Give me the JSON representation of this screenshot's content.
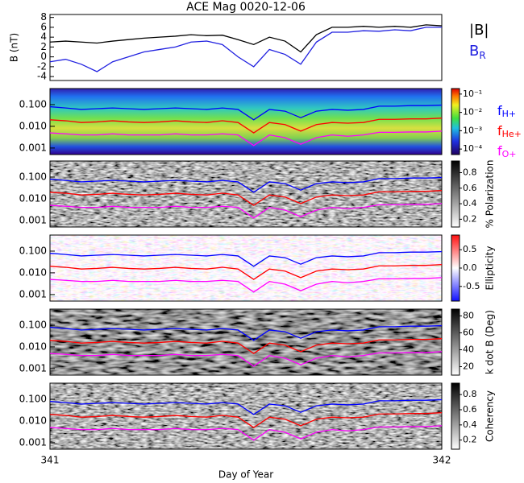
{
  "chart_data": {
    "type": "line",
    "title": "ACE Mag 0020-12-06",
    "x_label": "Day of Year",
    "x": [
      341,
      341.04,
      341.08,
      341.12,
      341.16,
      341.2,
      341.24,
      341.28,
      341.32,
      341.36,
      341.4,
      341.44,
      341.48,
      341.52,
      341.56,
      341.6,
      341.64,
      341.68,
      341.72,
      341.76,
      341.8,
      341.84,
      341.88,
      341.92,
      341.96,
      342
    ],
    "xlim": [
      341,
      342
    ],
    "xticks": [
      341,
      342
    ],
    "field_panel": {
      "y_label": "B (nT)",
      "ylim": [
        -4.8,
        8.6
      ],
      "yticks": [
        -4,
        -2,
        0,
        2,
        4,
        6,
        8
      ],
      "series": [
        {
          "name": "|B|",
          "color": "#000000",
          "values": [
            3,
            3.2,
            3,
            2.8,
            3.2,
            3.5,
            3.8,
            4,
            4.2,
            4.5,
            4.3,
            4.4,
            3.5,
            2.5,
            4,
            3.2,
            1,
            4.5,
            6,
            6,
            6.2,
            6,
            6.2,
            6,
            6.5,
            6.3
          ]
        },
        {
          "name": "B",
          "subscript": "R",
          "color": "#2020e0",
          "values": [
            -1,
            -0.5,
            -1.5,
            -3,
            -1,
            0,
            1,
            1.5,
            2,
            3,
            3.2,
            2.5,
            0,
            -2,
            1.5,
            0.5,
            -1.5,
            3,
            5,
            5,
            5.3,
            5.2,
            5.5,
            5.3,
            6,
            6
          ]
        }
      ]
    },
    "frequency_panels": {
      "log_scale": true,
      "ylim": [
        0.0005,
        0.55
      ],
      "yticks": [
        {
          "value": 0.001,
          "label": "0.001"
        },
        {
          "value": 0.01,
          "label": "0.010"
        },
        {
          "value": 0.1,
          "label": "0.100"
        }
      ],
      "series": [
        {
          "name": "f",
          "subscript": "H+",
          "color": "#0000ff",
          "values": [
            0.08,
            0.07,
            0.06,
            0.065,
            0.07,
            0.065,
            0.06,
            0.065,
            0.07,
            0.065,
            0.06,
            0.07,
            0.06,
            0.02,
            0.06,
            0.05,
            0.025,
            0.05,
            0.06,
            0.055,
            0.06,
            0.085,
            0.085,
            0.09,
            0.09,
            0.095
          ]
        },
        {
          "name": "f",
          "subscript": "He+",
          "color": "#ff0000",
          "values": [
            0.02,
            0.018,
            0.015,
            0.016,
            0.018,
            0.016,
            0.015,
            0.016,
            0.018,
            0.016,
            0.015,
            0.018,
            0.015,
            0.005,
            0.015,
            0.012,
            0.006,
            0.012,
            0.015,
            0.014,
            0.015,
            0.021,
            0.021,
            0.022,
            0.022,
            0.024
          ]
        },
        {
          "name": "f",
          "subscript": "O+",
          "color": "#ff00ff",
          "values": [
            0.005,
            0.0045,
            0.004,
            0.004,
            0.0045,
            0.004,
            0.004,
            0.004,
            0.0045,
            0.004,
            0.004,
            0.0045,
            0.004,
            0.0013,
            0.004,
            0.003,
            0.0015,
            0.003,
            0.004,
            0.0035,
            0.004,
            0.0053,
            0.0053,
            0.0055,
            0.0055,
            0.006
          ]
        }
      ],
      "colorbars": [
        {
          "clim": [
            5e-05,
            0.2
          ],
          "log_scale": true,
          "ticks": [
            {
              "value": 0.0001,
              "label": "10⁻⁴"
            },
            {
              "value": 0.001,
              "label": "10⁻³"
            },
            {
              "value": 0.01,
              "label": "10⁻²"
            },
            {
              "value": 0.1,
              "label": "10⁻¹"
            }
          ]
        },
        {
          "label": "% Polarization",
          "clim": [
            0.1,
            0.95
          ],
          "ticks": [
            0.2,
            0.4,
            0.6,
            0.8
          ]
        },
        {
          "label": "Ellipticity",
          "clim": [
            -0.9,
            0.9
          ],
          "ticks": [
            -0.5,
            {
              "value": 0,
              "label": "0.0"
            },
            0.5
          ]
        },
        {
          "label": "k dot B (Deg)",
          "clim": [
            10,
            88
          ],
          "ticks": [
            20,
            40,
            60,
            80
          ]
        },
        {
          "label": "Coherency",
          "clim": [
            0.08,
            0.95
          ],
          "ticks": [
            0.2,
            0.4,
            0.6,
            0.8
          ]
        }
      ]
    }
  }
}
